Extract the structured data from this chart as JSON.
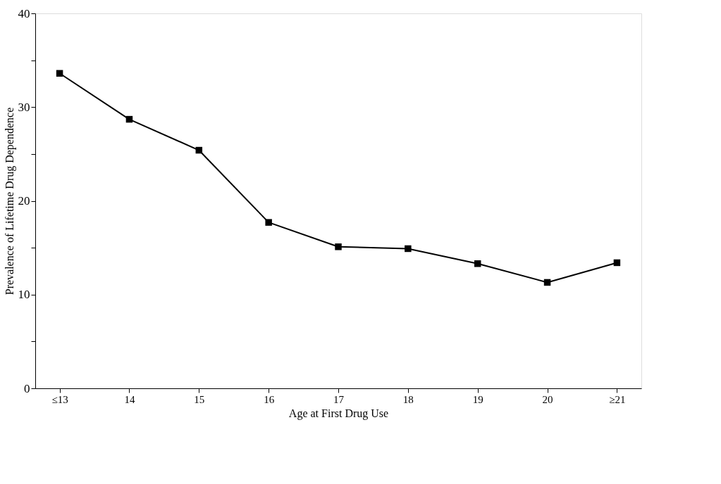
{
  "chart_data": {
    "type": "line",
    "xlabel": "Age at First Drug Use",
    "ylabel": "Prevalence of Lifetime Drug Dependence",
    "categories": [
      "≤13",
      "14",
      "15",
      "16",
      "17",
      "18",
      "19",
      "20",
      "≥21"
    ],
    "series": [
      {
        "color": "#000000",
        "values": [
          33.6,
          28.7,
          25.4,
          17.7,
          15.1,
          14.9,
          13.3,
          11.3,
          13.4
        ]
      }
    ],
    "ylim": [
      0,
      40
    ],
    "yticks": [
      0,
      {
        "value": 5,
        "label": null
      },
      10,
      {
        "value": 15,
        "label": null
      },
      20,
      {
        "value": 25,
        "label": null
      },
      30,
      {
        "value": 35,
        "label": null
      },
      40
    ],
    "grid": false,
    "marker": "square",
    "line_style": "solid"
  }
}
